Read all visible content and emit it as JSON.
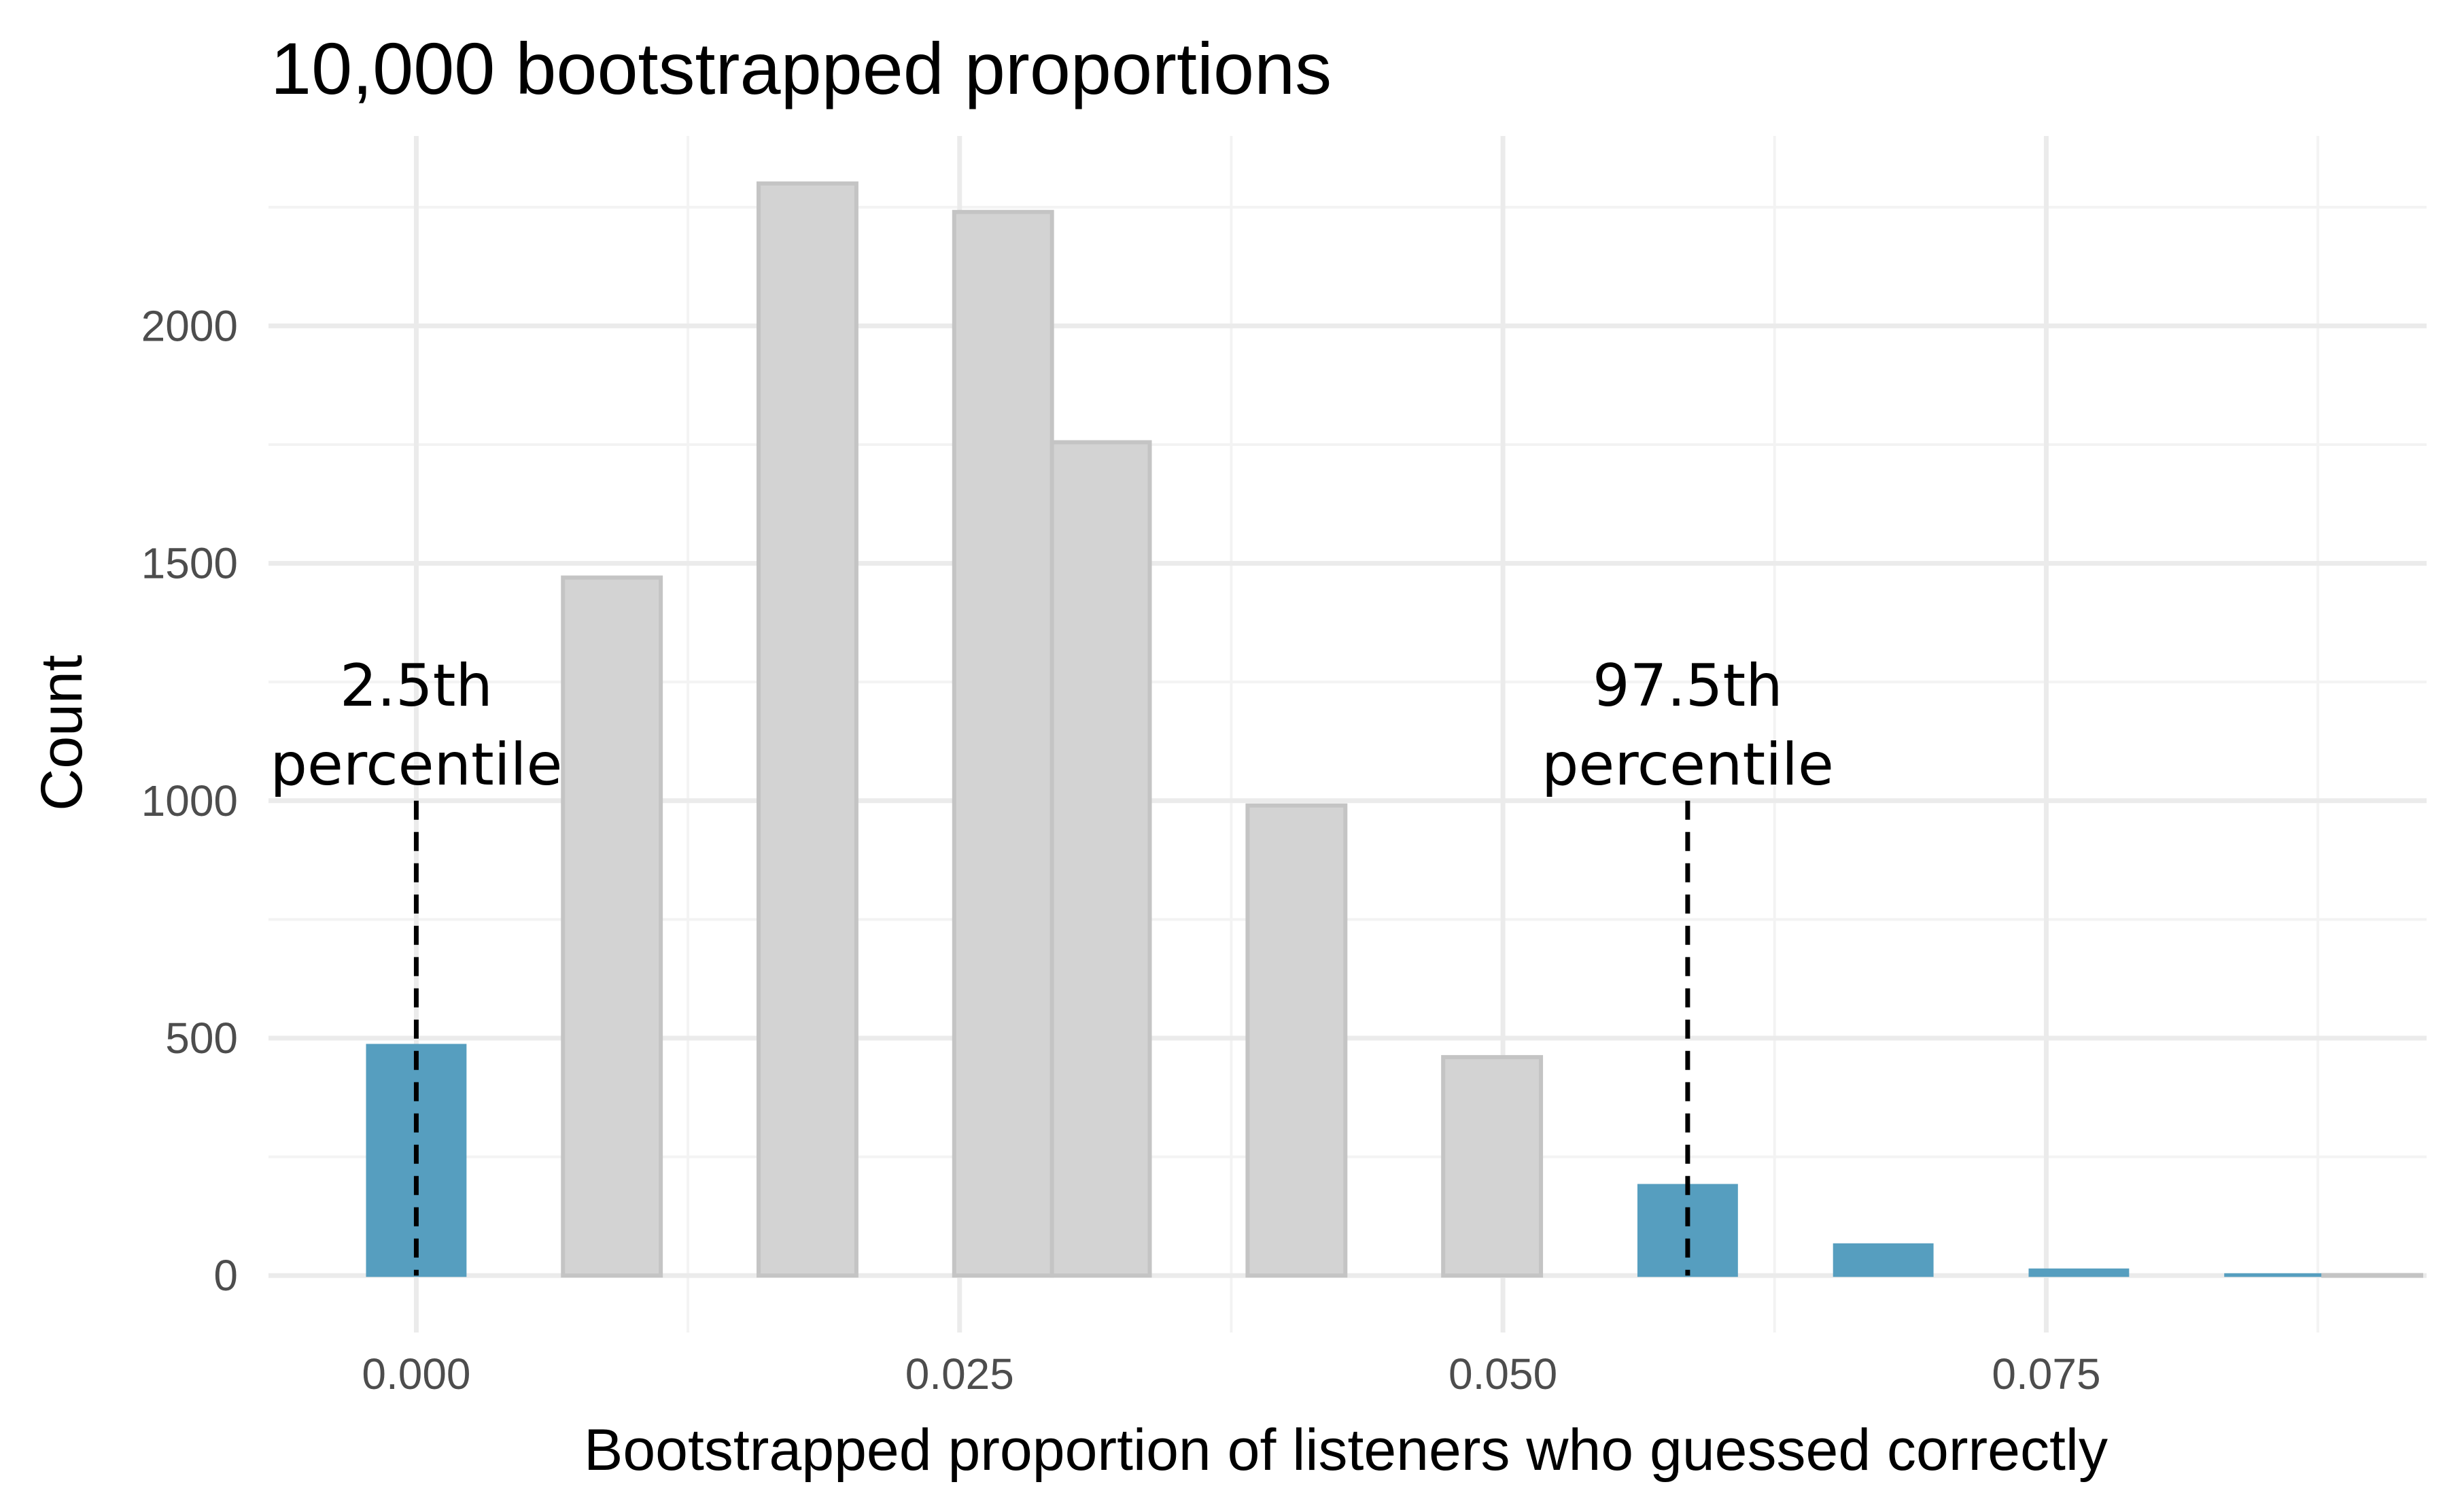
{
  "chart_data": {
    "type": "bar",
    "title": "10,000 bootstrapped proportions",
    "xlabel": "Bootstrapped proportion of listeners who guessed correctly",
    "ylabel": "Count",
    "xlim": [
      -0.0068,
      0.0925
    ],
    "ylim": [
      -120,
      2400
    ],
    "x_ticks": [
      0.0,
      0.025,
      0.05,
      0.075
    ],
    "x_tick_labels": [
      "0.000",
      "0.025",
      "0.050",
      "0.075"
    ],
    "y_ticks": [
      0,
      500,
      1000,
      1500,
      2000
    ],
    "y_tick_labels": [
      "0",
      "500",
      "1000",
      "1500",
      "2000"
    ],
    "bin_width": 0.0045,
    "bars": [
      {
        "x": 0.0,
        "count": 485,
        "color": "#569ebf",
        "in_tail": true
      },
      {
        "x": 0.009,
        "count": 1470,
        "color": "#d3d3d3",
        "in_tail": false
      },
      {
        "x": 0.018,
        "count": 2300,
        "color": "#d3d3d3",
        "in_tail": false
      },
      {
        "x": 0.027,
        "count": 2240,
        "color": "#d3d3d3",
        "in_tail": false
      },
      {
        "x": 0.0315,
        "count": 1755,
        "color": "#d3d3d3",
        "in_tail": false
      },
      {
        "x": 0.0405,
        "count": 990,
        "color": "#d3d3d3",
        "in_tail": false
      },
      {
        "x": 0.0495,
        "count": 460,
        "color": "#d3d3d3",
        "in_tail": false
      },
      {
        "x": 0.0585,
        "count": 190,
        "color": "#569ebf",
        "in_tail": true
      },
      {
        "x": 0.0675,
        "count": 65,
        "color": "#569ebf",
        "in_tail": true
      },
      {
        "x": 0.0765,
        "count": 12,
        "color": "#569ebf",
        "in_tail": true
      },
      {
        "x": 0.0855,
        "count": 2,
        "color": "#569ebf",
        "in_tail": true
      },
      {
        "x": 0.09,
        "count": 1,
        "color": "#d3d3d3",
        "in_tail": false
      }
    ],
    "percentiles": [
      {
        "x": 0.0,
        "line1": "2.5th",
        "line2": "percentile",
        "line_top": 1000
      },
      {
        "x": 0.0585,
        "line1": "97.5th",
        "line2": "percentile",
        "line_top": 1000
      }
    ],
    "colors": {
      "tail": "#569ebf",
      "middle": "#d3d3d3",
      "grid": "#ebebeb"
    }
  }
}
